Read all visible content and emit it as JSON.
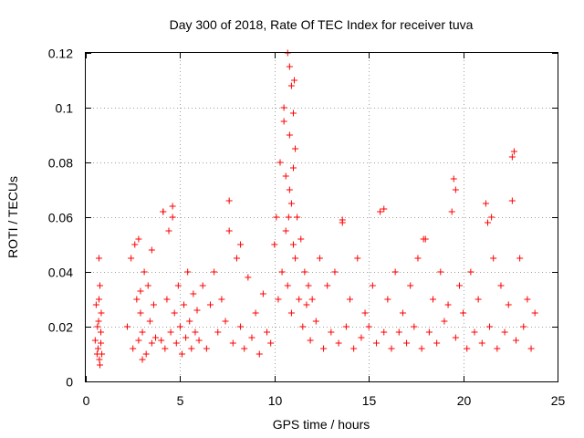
{
  "chart_data": {
    "type": "scatter",
    "title": "Day 300 of 2018, Rate Of TEC Index for receiver tuva",
    "xlabel": "GPS time / hours",
    "ylabel": "ROTI / TECUs",
    "xlim": [
      0,
      25
    ],
    "ylim": [
      0,
      0.12
    ],
    "x_ticks": [
      0,
      5,
      10,
      15,
      20,
      25
    ],
    "x_tick_labels": [
      "0",
      "5",
      "10",
      "15",
      "20",
      "25"
    ],
    "y_ticks": [
      0,
      0.02,
      0.04,
      0.06,
      0.08,
      0.1,
      0.12
    ],
    "y_tick_labels": [
      "0",
      "0.02",
      "0.04",
      "0.06",
      "0.08",
      "0.1",
      "0.12"
    ],
    "grid": true,
    "marker": "+",
    "color": "#ff0000",
    "series": [
      {
        "x": [
          0.5,
          0.55,
          0.6,
          0.62,
          0.65,
          0.7,
          0.72,
          0.75,
          0.8,
          0.82,
          0.85,
          0.7,
          0.68,
          0.75,
          0.8,
          2.2,
          2.4,
          2.5,
          2.6,
          2.7,
          2.8,
          2.9,
          3.0,
          3.1,
          3.2,
          3.3,
          3.4,
          3.5,
          3.6,
          3.7,
          2.8,
          3.0,
          2.9,
          3.5,
          4.0,
          4.1,
          4.2,
          4.3,
          4.4,
          4.5,
          4.6,
          4.7,
          4.8,
          4.9,
          5.0,
          5.1,
          5.2,
          5.3,
          5.4,
          5.5,
          5.6,
          5.7,
          5.8,
          5.9,
          6.0,
          6.2,
          6.4,
          6.6,
          6.8,
          7.0,
          7.2,
          7.4,
          7.6,
          7.8,
          8.0,
          8.2,
          8.4,
          8.6,
          8.8,
          9.0,
          9.2,
          9.4,
          9.6,
          9.8,
          10.0,
          10.1,
          10.2,
          10.3,
          10.4,
          10.5,
          10.6,
          10.7,
          10.8,
          10.9,
          11.0,
          11.1,
          11.2,
          11.3,
          11.4,
          11.5,
          11.6,
          11.7,
          11.8,
          11.9,
          12.0,
          12.2,
          12.4,
          12.6,
          12.8,
          13.0,
          13.2,
          13.4,
          13.6,
          13.8,
          14.0,
          14.2,
          14.4,
          14.6,
          14.8,
          15.0,
          15.2,
          15.4,
          15.6,
          15.8,
          16.0,
          16.2,
          16.4,
          16.6,
          16.8,
          17.0,
          17.2,
          17.4,
          17.6,
          17.8,
          18.0,
          18.2,
          18.4,
          18.6,
          18.8,
          19.0,
          19.2,
          19.4,
          19.6,
          19.8,
          20.0,
          20.2,
          20.4,
          20.6,
          20.8,
          21.0,
          21.2,
          21.4,
          21.6,
          21.8,
          22.0,
          22.2,
          22.4,
          22.6,
          22.8,
          23.0,
          23.2,
          23.4,
          23.6,
          23.8,
          10.5,
          10.7,
          10.8,
          10.9,
          11.0,
          11.1,
          10.6,
          10.8,
          11.0,
          10.9,
          11.05,
          10.75,
          19.5,
          19.6,
          22.6,
          22.7,
          21.3,
          21.5,
          7.6,
          8.2,
          15.8,
          17.9,
          13.6,
          4.1,
          4.6
        ],
        "y": [
          0.015,
          0.028,
          0.01,
          0.02,
          0.012,
          0.045,
          0.008,
          0.035,
          0.018,
          0.025,
          0.01,
          0.03,
          0.022,
          0.006,
          0.014,
          0.02,
          0.045,
          0.012,
          0.05,
          0.03,
          0.015,
          0.025,
          0.018,
          0.04,
          0.01,
          0.035,
          0.022,
          0.014,
          0.028,
          0.016,
          0.052,
          0.008,
          0.033,
          0.048,
          0.015,
          0.062,
          0.012,
          0.03,
          0.055,
          0.018,
          0.06,
          0.025,
          0.014,
          0.035,
          0.02,
          0.01,
          0.028,
          0.016,
          0.04,
          0.022,
          0.012,
          0.032,
          0.018,
          0.026,
          0.015,
          0.035,
          0.012,
          0.028,
          0.04,
          0.018,
          0.03,
          0.022,
          0.055,
          0.014,
          0.045,
          0.02,
          0.012,
          0.038,
          0.016,
          0.025,
          0.01,
          0.032,
          0.018,
          0.014,
          0.05,
          0.06,
          0.03,
          0.08,
          0.04,
          0.095,
          0.055,
          0.035,
          0.07,
          0.025,
          0.05,
          0.045,
          0.06,
          0.03,
          0.052,
          0.02,
          0.04,
          0.028,
          0.035,
          0.015,
          0.03,
          0.022,
          0.045,
          0.012,
          0.035,
          0.018,
          0.04,
          0.014,
          0.058,
          0.02,
          0.03,
          0.012,
          0.045,
          0.016,
          0.025,
          0.02,
          0.035,
          0.014,
          0.062,
          0.018,
          0.03,
          0.012,
          0.04,
          0.018,
          0.025,
          0.014,
          0.035,
          0.02,
          0.045,
          0.012,
          0.052,
          0.018,
          0.03,
          0.014,
          0.04,
          0.022,
          0.028,
          0.062,
          0.016,
          0.035,
          0.025,
          0.012,
          0.04,
          0.018,
          0.03,
          0.014,
          0.065,
          0.02,
          0.045,
          0.012,
          0.035,
          0.018,
          0.028,
          0.082,
          0.015,
          0.045,
          0.02,
          0.03,
          0.012,
          0.025,
          0.1,
          0.12,
          0.115,
          0.108,
          0.098,
          0.085,
          0.075,
          0.09,
          0.078,
          0.065,
          0.11,
          0.06,
          0.074,
          0.07,
          0.066,
          0.084,
          0.058,
          0.06,
          0.066,
          0.05,
          0.063,
          0.052,
          0.059,
          0.062,
          0.064
        ]
      }
    ]
  }
}
